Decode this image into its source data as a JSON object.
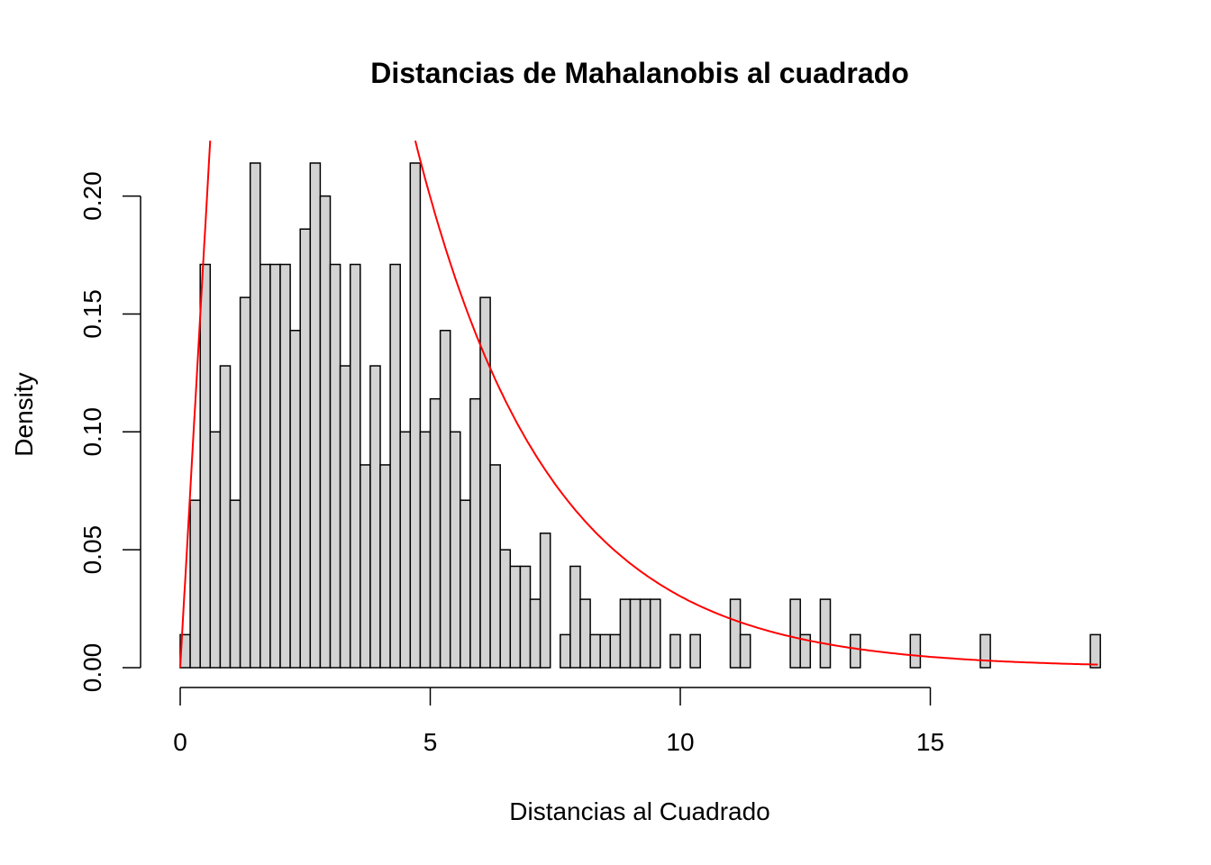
{
  "chart_data": {
    "type": "bar",
    "title": "Distancias de Mahalanobis al cuadrado",
    "xlabel": "Distancias al Cuadrado",
    "ylabel": "Density",
    "xlim": [
      0,
      18.4
    ],
    "ylim": [
      0,
      0.22
    ],
    "x_ticks": [
      0,
      5,
      10,
      15
    ],
    "x_tick_labels": [
      "0",
      "5",
      "10",
      "15"
    ],
    "y_ticks": [
      0.0,
      0.05,
      0.1,
      0.15,
      0.2
    ],
    "y_tick_labels": [
      "0.00",
      "0.05",
      "0.10",
      "0.15",
      "0.20"
    ],
    "bin_width": 0.2,
    "bin_start": 0,
    "values": [
      0.014,
      0.071,
      0.171,
      0.1,
      0.128,
      0.071,
      0.157,
      0.214,
      0.171,
      0.171,
      0.171,
      0.143,
      0.186,
      0.214,
      0.2,
      0.171,
      0.128,
      0.171,
      0.086,
      0.128,
      0.086,
      0.171,
      0.1,
      0.214,
      0.1,
      0.114,
      0.143,
      0.1,
      0.071,
      0.114,
      0.157,
      0.086,
      0.05,
      0.043,
      0.043,
      0.029,
      0.057,
      0,
      0.014,
      0.043,
      0.029,
      0.014,
      0.014,
      0.014,
      0.029,
      0.029,
      0.029,
      0.029,
      0,
      0.014,
      0,
      0.014,
      0,
      0,
      0,
      0.029,
      0.014,
      0,
      0,
      0,
      0,
      0.029,
      0.014,
      0,
      0.029,
      0,
      0,
      0.014,
      0,
      0,
      0,
      0,
      0,
      0.014,
      0,
      0,
      0,
      0,
      0,
      0,
      0.014,
      0,
      0,
      0,
      0,
      0,
      0,
      0,
      0,
      0,
      0,
      0.014
    ],
    "bar_fill": "#d3d3d3",
    "bar_stroke": "#000000",
    "curve": {
      "type": "line",
      "color": "#ff0000",
      "description_x_range": [
        0,
        18.4
      ]
    },
    "grid": false
  }
}
